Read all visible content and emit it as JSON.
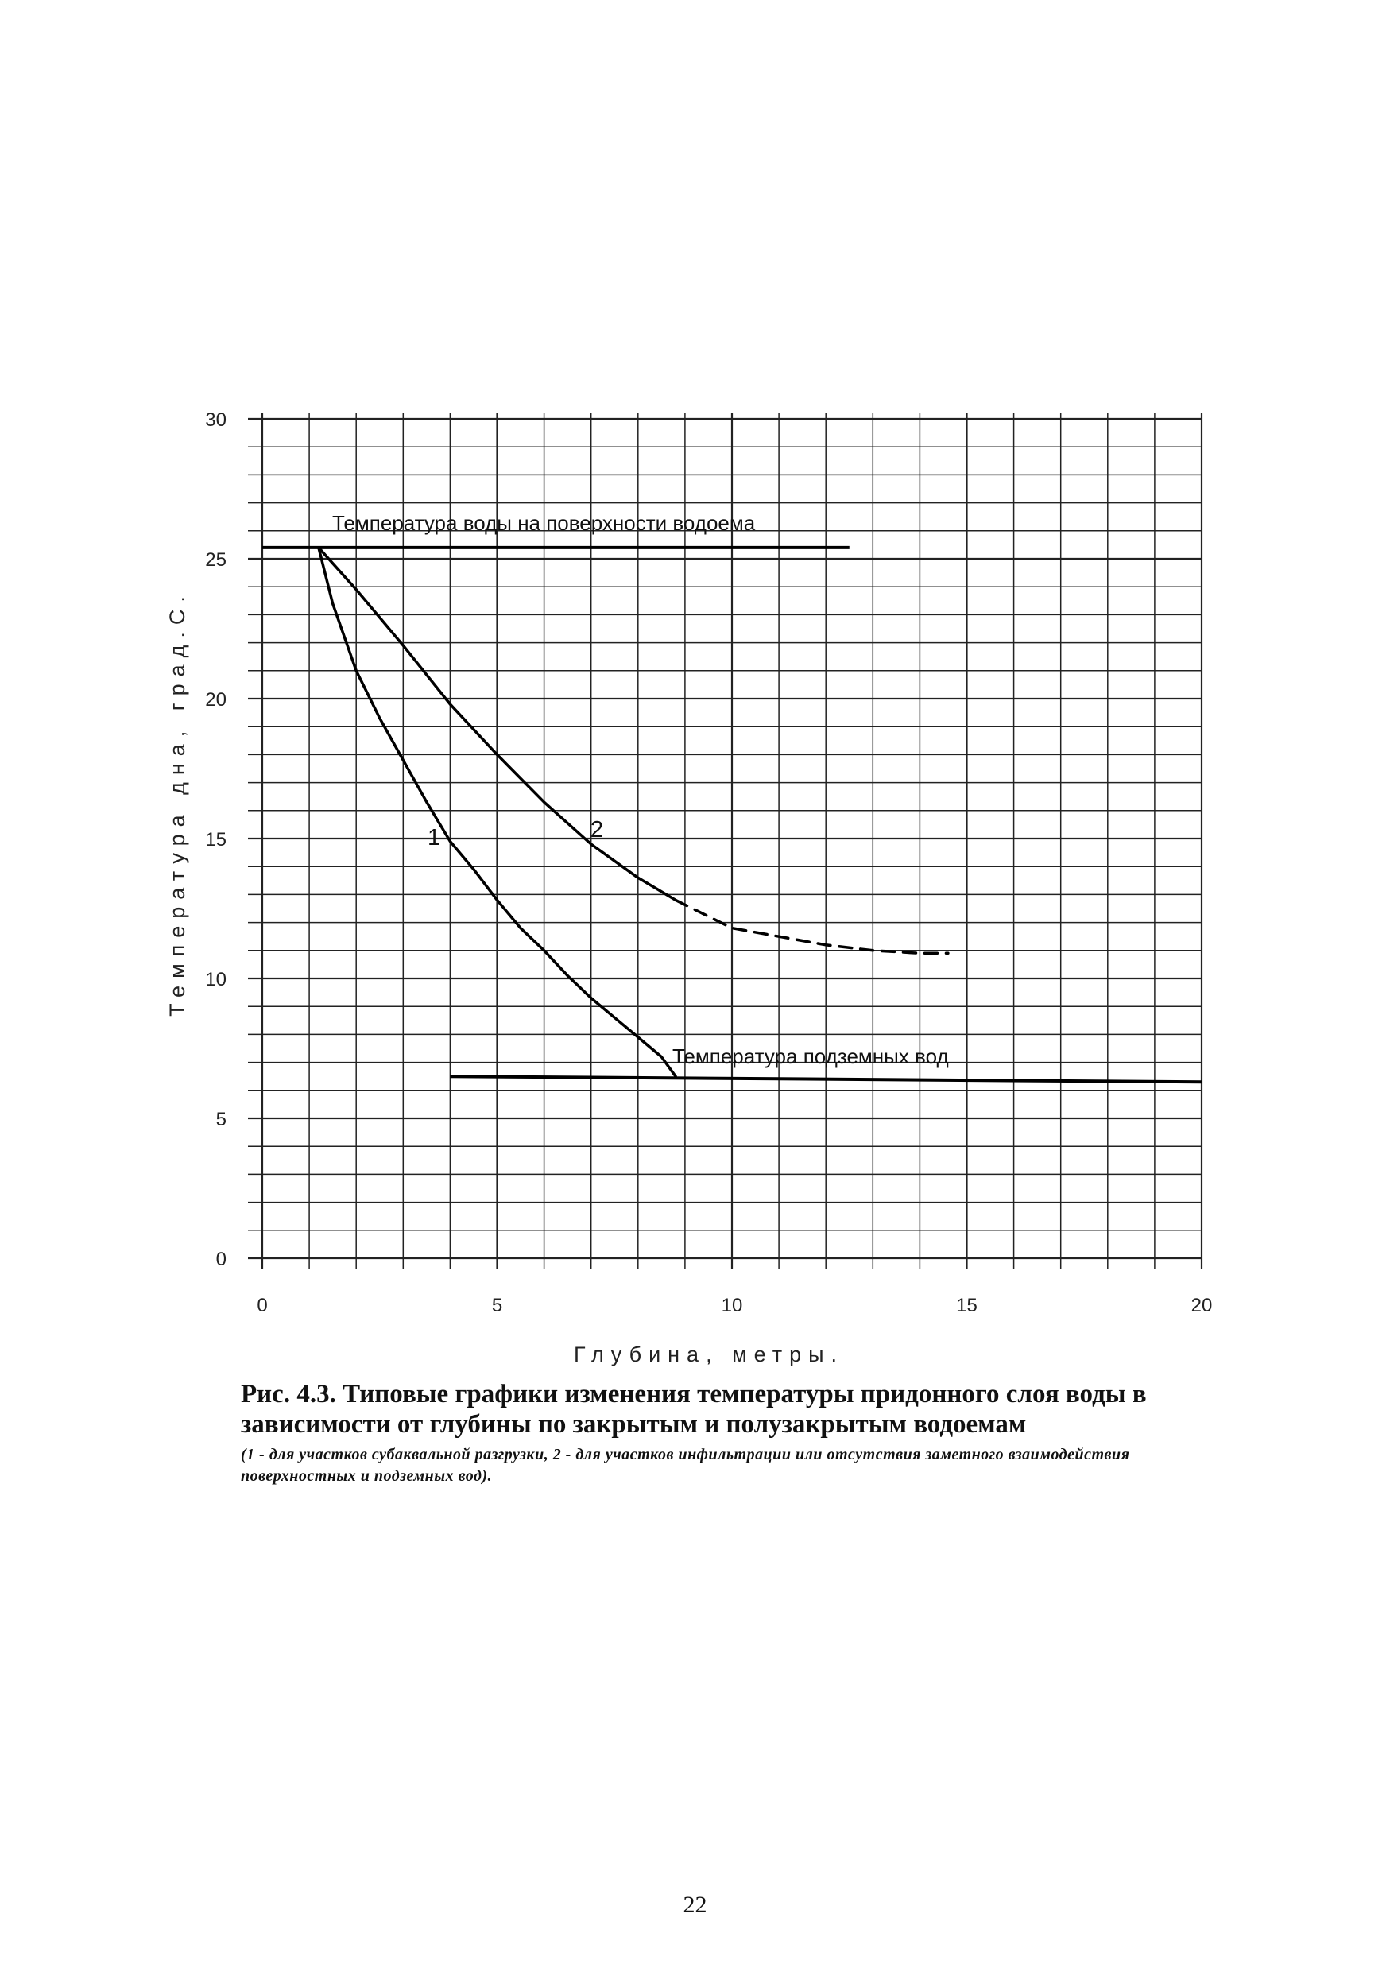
{
  "chart_data": {
    "type": "line",
    "xlabel": "Глубина, метры.",
    "ylabel": "Температура дна, град.С.",
    "xlim": [
      0,
      20
    ],
    "ylim": [
      0,
      30
    ],
    "x_ticks": [
      "0",
      "5",
      "10",
      "15",
      "20"
    ],
    "y_ticks": [
      "0",
      "5",
      "10",
      "15",
      "20",
      "25",
      "30"
    ],
    "grid": true,
    "reference_lines": [
      {
        "label": "Температура воды на поверхности водоема",
        "x": [
          0,
          12.5
        ],
        "y": [
          25.4,
          25.4
        ]
      },
      {
        "label": "Температура подземных вод",
        "x": [
          4,
          20
        ],
        "y": [
          6.5,
          6.3
        ]
      }
    ],
    "series": [
      {
        "name": "1",
        "x": [
          1.2,
          1.5,
          2,
          2.5,
          3,
          3.5,
          4,
          4.5,
          5,
          5.5,
          6,
          6.5,
          7,
          7.5,
          8,
          8.5,
          8.8
        ],
        "y": [
          25.4,
          23.4,
          21.0,
          19.3,
          17.8,
          16.3,
          14.9,
          13.9,
          12.8,
          11.8,
          11.0,
          10.1,
          9.3,
          8.6,
          7.9,
          7.2,
          6.5
        ]
      },
      {
        "name": "2",
        "x": [
          1.2,
          2,
          3,
          4,
          5,
          6,
          7,
          8,
          8.8
        ],
        "y": [
          25.4,
          23.9,
          21.9,
          19.8,
          18.0,
          16.3,
          14.8,
          13.6,
          12.8
        ]
      },
      {
        "name": "2",
        "style": "dashed",
        "x": [
          8.8,
          10,
          11,
          12,
          13,
          14,
          14.6
        ],
        "y": [
          12.8,
          11.8,
          11.5,
          11.2,
          11.0,
          10.9,
          10.9
        ]
      }
    ]
  },
  "caption": {
    "main": "Рис. 4.3.  Типовые графики изменения температуры придонного слоя воды в зависимости от глубины по закрытым и полузакрытым водоемам",
    "note": "(1 - для участков субаквальной разгрузки, 2 - для участков инфильтрации или отсутствия заметного взаимодействия поверхностных и подземных вод)."
  },
  "page_number": "22"
}
